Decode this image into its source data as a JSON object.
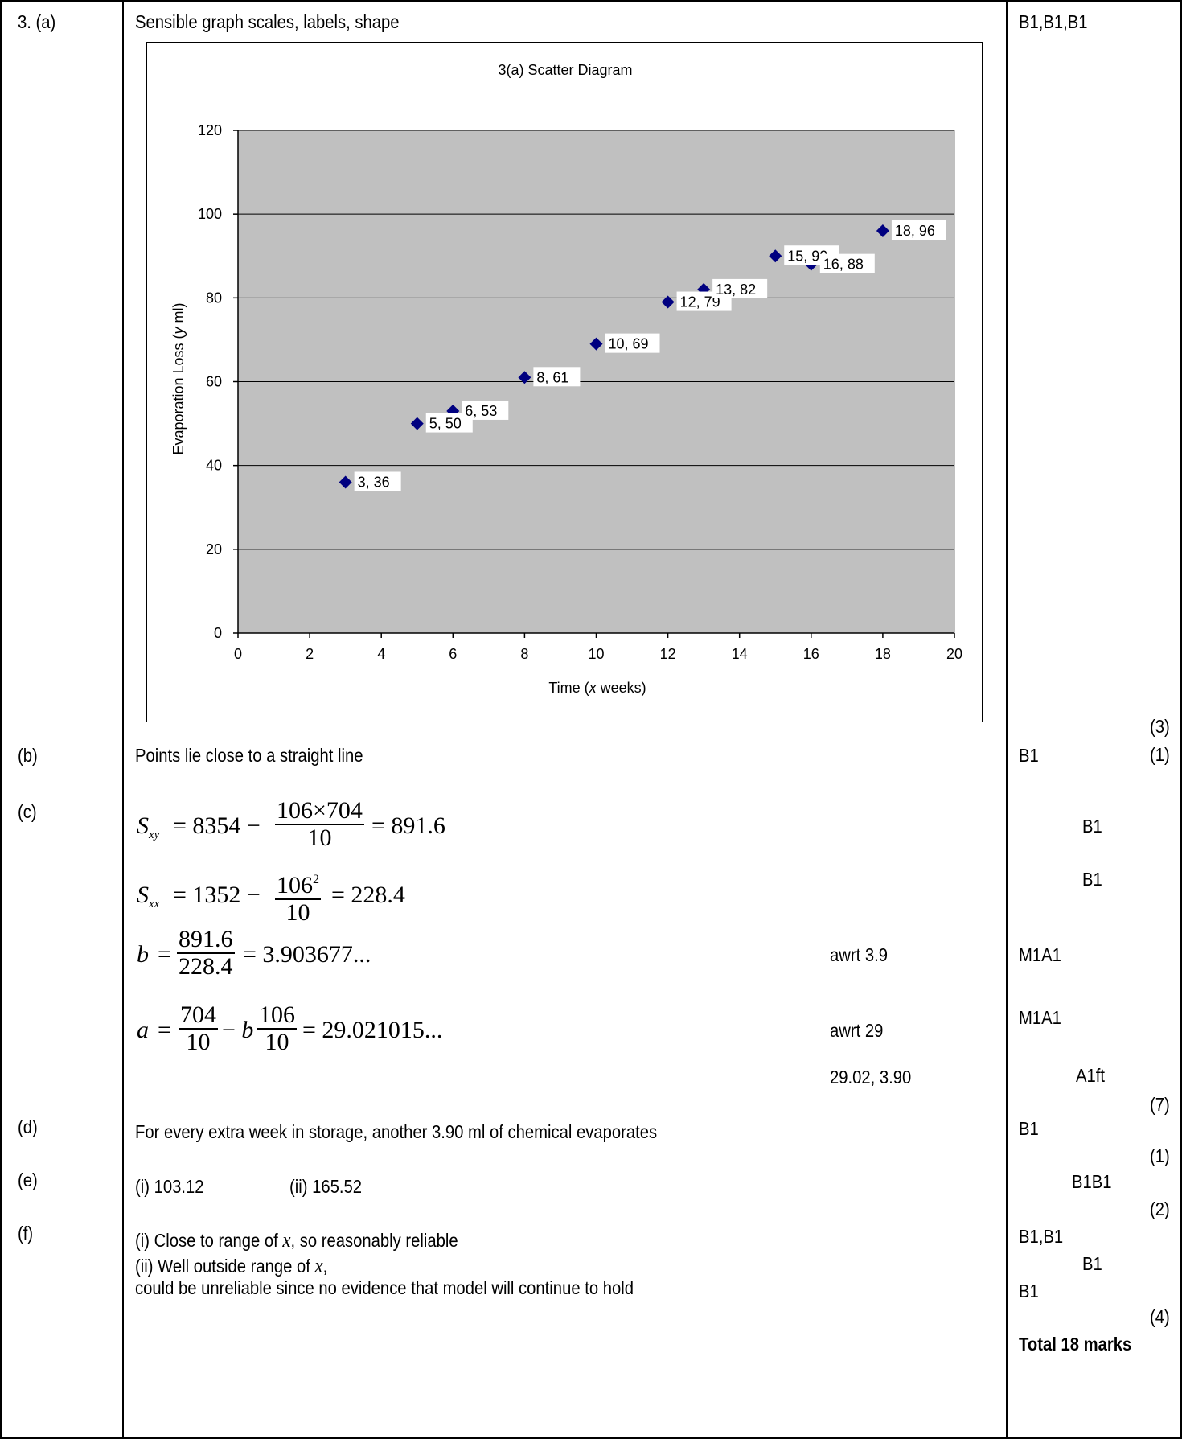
{
  "question": {
    "part_a": {
      "label": "3. (a)",
      "text": "Sensible graph scales, labels, shape",
      "marks": "B1,B1,B1",
      "subtotal": "(3)"
    },
    "part_b": {
      "label": "(b)",
      "text": "Points lie close to a straight line",
      "marks": "B1",
      "subtotal": "(1)"
    },
    "part_c": {
      "label": "(c)",
      "sxy": {
        "lhs_main": "S",
        "lhs_sub": "xy",
        "pre": "= 8354 −",
        "num": "106×704",
        "den": "10",
        "post": "= 891.6",
        "mark": "B1"
      },
      "sxx": {
        "lhs_main": "S",
        "lhs_sub": "xx",
        "pre": "= 1352 −",
        "num_base": "106",
        "num_exp": "2",
        "den": "10",
        "post": "= 228.4",
        "mark": "B1"
      },
      "b": {
        "lhs": "b",
        "pre": "=",
        "num": "891.6",
        "den": "228.4",
        "post": "= 3.903677...",
        "note": "awrt 3.9",
        "mark": "M1A1"
      },
      "a": {
        "lhs": "a",
        "pre": "=",
        "num1": "704",
        "den1": "10",
        "mid": "− b",
        "num2": "106",
        "den2": "10",
        "post": "= 29.021015...",
        "note": "awrt 29",
        "mark": "M1A1"
      },
      "final": {
        "note": "29.02, 3.90",
        "mark": "A1ft"
      },
      "subtotal": "(7)"
    },
    "part_d": {
      "label": "(d)",
      "text": "For every extra week in storage, another 3.90 ml of chemical evaporates",
      "marks": "B1",
      "subtotal": "(1)"
    },
    "part_e": {
      "label": "(e)",
      "text_i": "(i) 103.12",
      "text_ii": "(ii) 165.52",
      "marks": "B1B1",
      "subtotal": "(2)"
    },
    "part_f": {
      "label": "(f)",
      "line1_pre": "(i) Close to range of",
      "line1_var": "x",
      "line1_post": ", so reasonably reliable",
      "line2_pre": "(ii) Well outside range of",
      "line2_var": "x",
      "line2_post": ",",
      "line3": "could be unreliable since no evidence that model will continue to hold",
      "mark1": "B1,B1",
      "mark2": "B1",
      "mark3": "B1",
      "subtotal": "(4)"
    },
    "total": "Total 18 marks"
  },
  "chart_data": {
    "type": "scatter",
    "title": "3(a) Scatter Diagram",
    "xlabel_pre": "Time (",
    "xlabel_var": "x",
    "xlabel_post": " weeks)",
    "ylabel_pre": "Evaporation Loss (",
    "ylabel_var": "y",
    "ylabel_post": " ml)",
    "xlim": [
      0,
      20
    ],
    "ylim": [
      0,
      120
    ],
    "xticks": [
      0,
      2,
      4,
      6,
      8,
      10,
      12,
      14,
      16,
      18,
      20
    ],
    "yticks": [
      0,
      20,
      40,
      60,
      80,
      100,
      120
    ],
    "grid": "horizontal",
    "colors": {
      "plot_bg": "#c0c0c0",
      "marker": "#000080",
      "gridline": "#000000"
    },
    "points": [
      {
        "x": 3,
        "y": 36,
        "label": "3, 36"
      },
      {
        "x": 5,
        "y": 50,
        "label": "5, 50"
      },
      {
        "x": 6,
        "y": 53,
        "label": "6, 53"
      },
      {
        "x": 8,
        "y": 61,
        "label": "8, 61"
      },
      {
        "x": 10,
        "y": 69,
        "label": "10, 69"
      },
      {
        "x": 12,
        "y": 79,
        "label": "12, 79"
      },
      {
        "x": 13,
        "y": 82,
        "label": "13, 82"
      },
      {
        "x": 15,
        "y": 90,
        "label": "15, 90"
      },
      {
        "x": 16,
        "y": 88,
        "label": "16, 88"
      },
      {
        "x": 18,
        "y": 96,
        "label": "18, 96"
      }
    ]
  }
}
